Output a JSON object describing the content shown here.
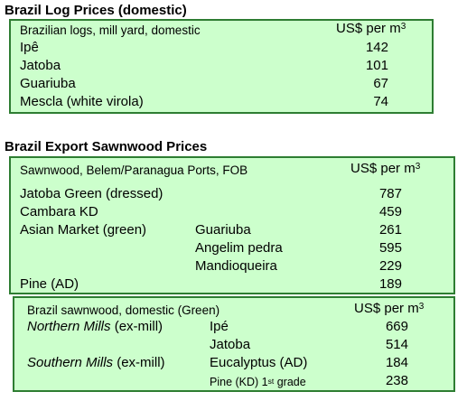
{
  "log_table": {
    "title": "Brazil Log Prices (domestic)",
    "header": "Brazilian logs, mill yard, domestic",
    "unit": "US$ per m",
    "unit_sup": "3",
    "rows": [
      {
        "name": "Ipê",
        "price": "142"
      },
      {
        "name": "Jatoba",
        "price": "101"
      },
      {
        "name": "Guariuba",
        "price": "67"
      },
      {
        "name": "Mescla (white virola)",
        "price": "74"
      }
    ]
  },
  "export_table": {
    "title": "Brazil Export Sawnwood Prices",
    "header": "Sawnwood, Belem/Paranagua Ports, FOB",
    "unit": "US$ per m",
    "unit_sup": "3",
    "rows": [
      {
        "name": "Jatoba Green (dressed)",
        "sub": "",
        "price": "787"
      },
      {
        "name": "Cambara KD",
        "sub": "",
        "price": "459"
      },
      {
        "name": "Asian Market (green)",
        "sub": "Guariuba",
        "price": "261"
      },
      {
        "name": "",
        "sub": "Angelim pedra",
        "price": "595"
      },
      {
        "name": "",
        "sub": "Mandioqueira",
        "price": "229"
      },
      {
        "name": "Pine (AD)",
        "sub": "",
        "price": "189"
      }
    ]
  },
  "domestic_table": {
    "header": "Brazil sawnwood, domestic (Green)",
    "unit": "US$ per m",
    "unit_sup": "3",
    "rows": [
      {
        "name": "Northern Mills",
        "suffix": " (ex-mill)",
        "sub": "Ipé",
        "price": "669"
      },
      {
        "name": "",
        "suffix": "",
        "sub": "Jatoba",
        "price": "514"
      },
      {
        "name": "Southern Mills",
        "suffix": " (ex-mill)",
        "sub": "Eucalyptus (AD)",
        "price": "184"
      },
      {
        "name": "",
        "suffix": "",
        "sub": "Pine (KD) 1",
        "sub_sup": "st",
        "sub_tail": " grade",
        "price": "238"
      }
    ]
  },
  "colors": {
    "box_fill": "#ccffcc",
    "box_border": "#2e7d32"
  }
}
